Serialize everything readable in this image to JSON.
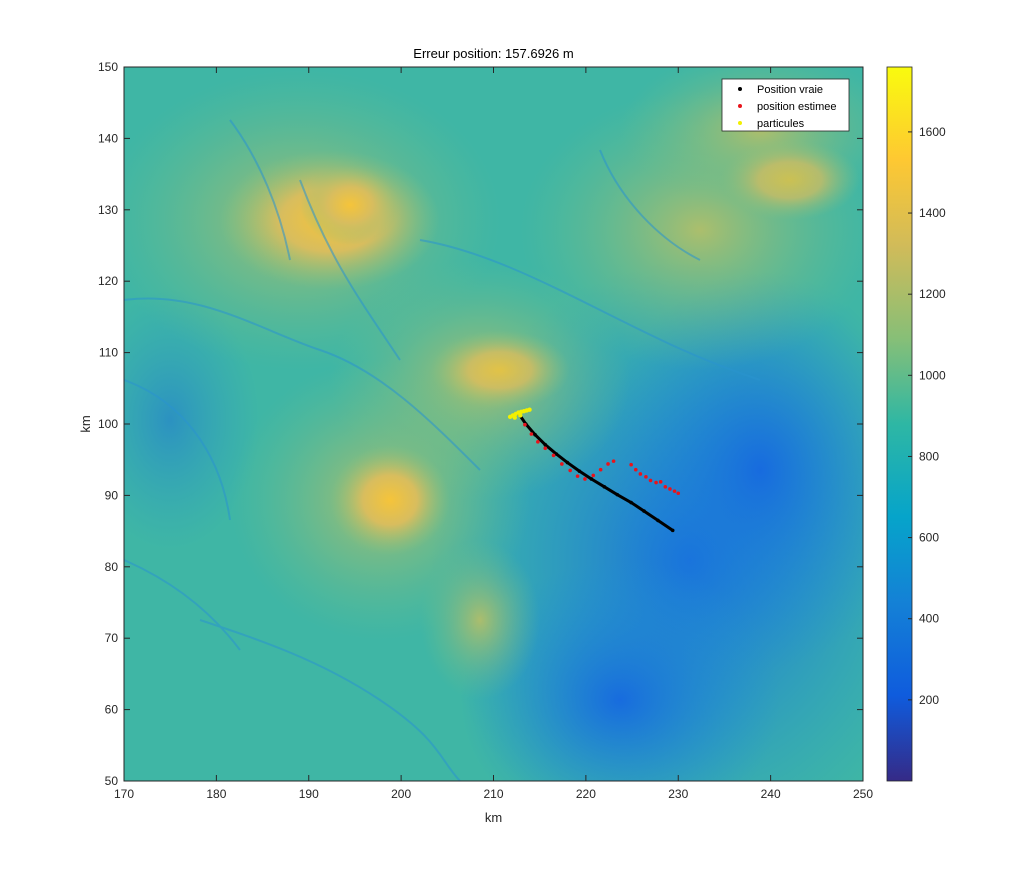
{
  "chart_data": {
    "type": "scatter",
    "title": "Erreur position: 157.6926 m",
    "xlabel": "km",
    "ylabel": "km",
    "xlim": [
      170,
      250
    ],
    "ylim": [
      50,
      150
    ],
    "x_ticks": [
      170,
      180,
      190,
      200,
      210,
      220,
      230,
      240,
      250
    ],
    "y_ticks": [
      50,
      60,
      70,
      80,
      90,
      100,
      110,
      120,
      130,
      140,
      150
    ],
    "background": "terrain elevation heatmap (parula colormap)",
    "legend": {
      "placement": "top-right",
      "entries": [
        {
          "label": "Position vraie",
          "color": "#000000"
        },
        {
          "label": "position estimee",
          "color": "#e8141c"
        },
        {
          "label": "particules",
          "color": "#f2f000"
        }
      ]
    },
    "colorbar": {
      "min": 0,
      "max": 1760,
      "ticks": [
        200,
        400,
        600,
        800,
        1000,
        1200,
        1400,
        1600
      ],
      "colormap": "parula"
    },
    "series": [
      {
        "name": "Position vraie",
        "color": "#000000",
        "x": [
          212.7,
          213.5,
          214.5,
          215.6,
          216.8,
          218.0,
          219.3,
          220.6,
          222.0,
          223.4,
          224.9,
          226.3,
          227.8,
          229.4
        ],
        "y": [
          101.5,
          100.0,
          98.5,
          97.1,
          95.8,
          94.6,
          93.4,
          92.3,
          91.2,
          90.1,
          89.0,
          87.8,
          86.5,
          85.1
        ]
      },
      {
        "name": "position estimee",
        "color": "#e8141c",
        "x": [
          212.8,
          213.4,
          214.1,
          214.8,
          215.6,
          216.5,
          217.4,
          218.3,
          219.1,
          219.9,
          220.8,
          221.6,
          222.4,
          223.0,
          224.9,
          225.4,
          225.9,
          226.5,
          227.0,
          227.6,
          228.1,
          228.6,
          229.1,
          229.6,
          230.0
        ],
        "y": [
          101.4,
          99.9,
          98.6,
          97.5,
          96.6,
          95.6,
          94.4,
          93.5,
          92.7,
          92.3,
          92.8,
          93.6,
          94.4,
          94.8,
          94.3,
          93.6,
          93.0,
          92.6,
          92.1,
          91.8,
          91.9,
          91.2,
          90.9,
          90.6,
          90.3
        ]
      },
      {
        "name": "particules",
        "color": "#f2f000",
        "x": [
          211.8,
          212.1,
          212.4,
          212.7,
          213.0,
          213.3,
          213.6,
          213.9,
          212.3,
          212.9
        ],
        "y": [
          101.0,
          101.2,
          101.4,
          101.6,
          101.7,
          101.8,
          101.9,
          102.0,
          100.9,
          101.2
        ]
      }
    ]
  }
}
